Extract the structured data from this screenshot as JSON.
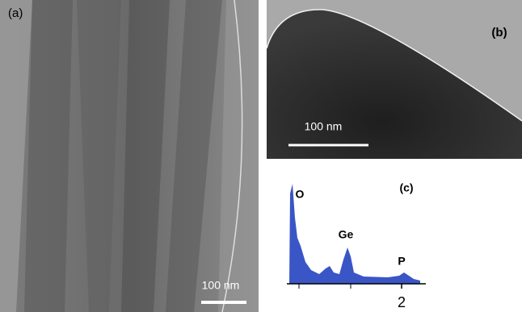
{
  "panels": {
    "a": {
      "label": "(a)",
      "scale_bar": "100 nm"
    },
    "b": {
      "label": "(b)",
      "scale_bar": "100 nm"
    },
    "c": {
      "label": "(c)",
      "peaks": [
        "O",
        "Ge",
        "P"
      ],
      "x_tick": "2"
    }
  }
}
